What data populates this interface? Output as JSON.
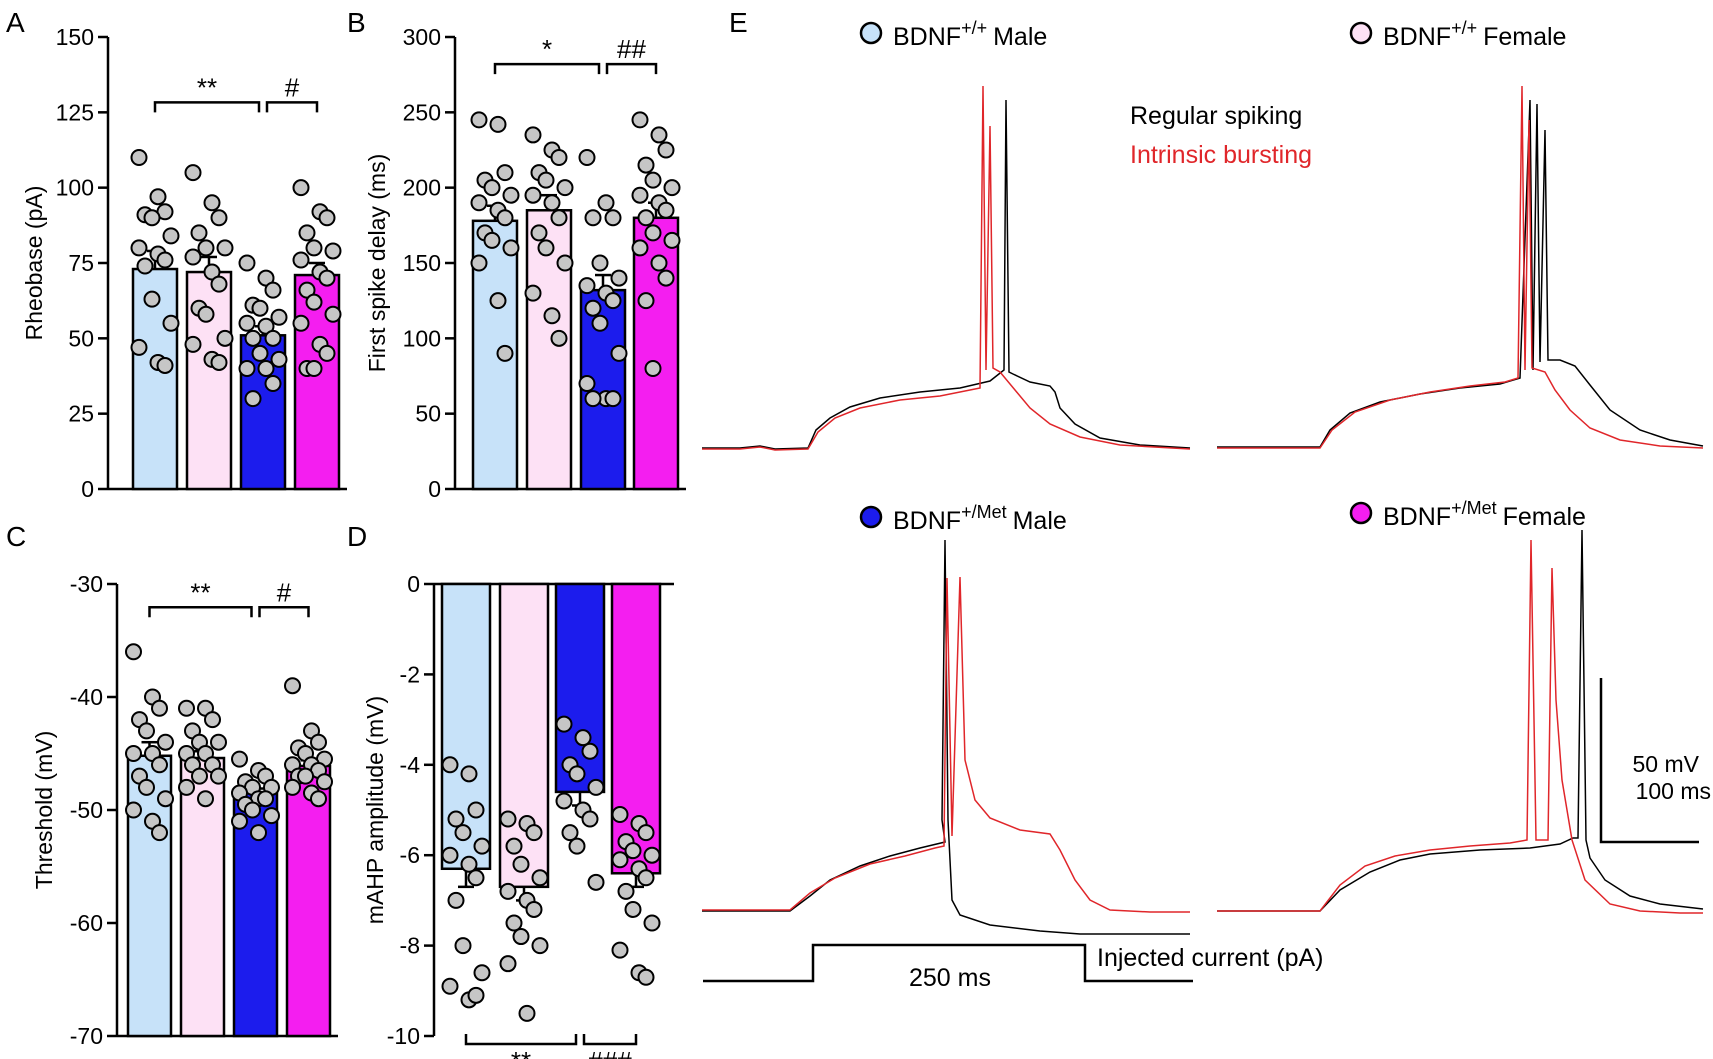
{
  "colors": {
    "wt_male": "#c7e2f9",
    "wt_female": "#fde1f5",
    "met_male": "#1c1ced",
    "met_female": "#f41ef0",
    "dot": "#c6c6c6",
    "regular": "#000000",
    "bursting": "#e0262a"
  },
  "chart_data": [
    {
      "panel": "A",
      "type": "bar",
      "ylabel": "Rheobase (pA)",
      "ylim": [
        0,
        150
      ],
      "yticks": [
        0,
        25,
        50,
        75,
        100,
        125,
        150
      ],
      "categories": [
        "BDNF+/+ Male",
        "BDNF+/+ Female",
        "BDNF+/Met Male",
        "BDNF+/Met Female"
      ],
      "values": [
        73,
        72,
        51,
        71
      ],
      "sem": [
        6,
        5,
        3,
        4
      ],
      "points": [
        [
          110,
          97,
          92,
          91,
          90,
          84,
          80,
          78,
          76,
          74,
          63,
          55,
          47,
          42,
          41
        ],
        [
          105,
          95,
          90,
          85,
          80,
          80,
          77,
          72,
          68,
          60,
          58,
          50,
          48,
          43,
          42
        ],
        [
          75,
          70,
          66,
          61,
          60,
          57,
          55,
          54,
          50,
          50,
          45,
          43,
          40,
          40,
          35,
          30
        ],
        [
          100,
          92,
          90,
          85,
          80,
          79,
          76,
          72,
          70,
          66,
          62,
          58,
          55,
          48,
          45,
          40,
          40
        ]
      ],
      "sig": [
        {
          "label": "**",
          "from": 0,
          "to": 2,
          "y": 125
        },
        {
          "label": "#",
          "from": 2,
          "to": 3,
          "y": 125
        }
      ]
    },
    {
      "panel": "B",
      "type": "bar",
      "ylabel": "First spike delay (ms)",
      "ylim": [
        0,
        300
      ],
      "yticks": [
        0,
        50,
        100,
        150,
        200,
        250,
        300
      ],
      "categories": [
        "BDNF+/+ Male",
        "BDNF+/+ Female",
        "BDNF+/Met Male",
        "BDNF+/Met Female"
      ],
      "values": [
        178,
        185,
        132,
        180
      ],
      "sem": [
        10,
        10,
        10,
        10
      ],
      "points": [
        [
          245,
          242,
          210,
          205,
          200,
          195,
          190,
          185,
          180,
          170,
          165,
          160,
          150,
          125,
          90
        ],
        [
          235,
          225,
          220,
          210,
          205,
          200,
          195,
          190,
          180,
          170,
          160,
          150,
          130,
          115,
          100
        ],
        [
          220,
          190,
          180,
          180,
          150,
          140,
          135,
          130,
          125,
          120,
          110,
          90,
          70,
          60,
          60,
          60
        ],
        [
          245,
          235,
          225,
          215,
          205,
          200,
          195,
          190,
          185,
          180,
          170,
          165,
          160,
          150,
          140,
          125,
          80
        ]
      ],
      "sig": [
        {
          "label": "*",
          "from": 0,
          "to": 2,
          "y": 290
        },
        {
          "label": "##",
          "from": 2,
          "to": 3,
          "y": 290
        }
      ]
    },
    {
      "panel": "C",
      "type": "bar",
      "ylabel": "Threshold (mV)",
      "ylim": [
        -70,
        -30
      ],
      "yticks": [
        -70,
        -60,
        -50,
        -40,
        -30
      ],
      "categories": [
        "BDNF+/+ Male",
        "BDNF+/+ Female",
        "BDNF+/Met Male",
        "BDNF+/Met Female"
      ],
      "values": [
        -45.2,
        -45.4,
        -48.5,
        -46.1
      ],
      "sem": [
        1.2,
        0.6,
        0.4,
        0.5
      ],
      "points": [
        [
          -36,
          -40,
          -41,
          -42,
          -43,
          -44,
          -45,
          -45,
          -46,
          -47,
          -48,
          -49,
          -50,
          -51,
          -52
        ],
        [
          -41,
          -41,
          -42,
          -43,
          -44,
          -44,
          -45,
          -45,
          -46,
          -46,
          -47,
          -47,
          -48,
          -49
        ],
        [
          -45.5,
          -46.5,
          -47,
          -47.5,
          -48,
          -48,
          -48.5,
          -49,
          -49,
          -49.5,
          -50,
          -50.5,
          -51,
          -52
        ],
        [
          -39,
          -43,
          -44,
          -44.5,
          -45,
          -45.5,
          -46,
          -46,
          -46.5,
          -47,
          -47,
          -47.5,
          -48,
          -48.5,
          -49
        ]
      ],
      "sig": [
        {
          "label": "**",
          "from": 0,
          "to": 2,
          "y": -31
        },
        {
          "label": "#",
          "from": 2,
          "to": 3,
          "y": -31
        }
      ]
    },
    {
      "panel": "D",
      "type": "bar",
      "ylabel": "mAHP amplitude (mV)",
      "ylim": [
        -10,
        0
      ],
      "yticks": [
        -10,
        -8,
        -6,
        -4,
        -2,
        0
      ],
      "categories": [
        "BDNF+/+ Male",
        "BDNF+/+ Female",
        "BDNF+/Met Male",
        "BDNF+/Met Female"
      ],
      "values": [
        -6.3,
        -6.7,
        -4.6,
        -6.4
      ],
      "sem": [
        0.4,
        0.3,
        0.3,
        0.3
      ],
      "points": [
        [
          -4,
          -4.2,
          -5,
          -5.2,
          -5.5,
          -5.8,
          -6,
          -6.2,
          -6.5,
          -7,
          -8,
          -8.6,
          -8.9,
          -9.2,
          -9.1
        ],
        [
          -5.2,
          -5.3,
          -5.5,
          -5.8,
          -6.2,
          -6.5,
          -6.8,
          -7,
          -7.2,
          -7.5,
          -7.8,
          -8,
          -8.4,
          -9.5
        ],
        [
          -3.1,
          -3.4,
          -3.7,
          -4,
          -4.2,
          -4.5,
          -4.8,
          -5,
          -5.2,
          -5.5,
          -5.8,
          -6.6
        ],
        [
          -5.1,
          -5.3,
          -5.5,
          -5.7,
          -5.9,
          -6,
          -6.1,
          -6.3,
          -6.5,
          -6.8,
          -7.2,
          -7.5,
          -8.1,
          -8.6,
          -8.7
        ]
      ],
      "sig": [
        {
          "label": "**",
          "from": 0,
          "to": 2,
          "y": -10.5,
          "below": true
        },
        {
          "label": "###",
          "from": 2,
          "to": 3,
          "y": -10.5,
          "below": true
        }
      ]
    }
  ],
  "panels": {
    "A": "A",
    "B": "B",
    "C": "C",
    "D": "D",
    "E": "E"
  },
  "traces": {
    "wt_male": {
      "prefix": "BDNF",
      "sup": "+/+",
      "suffix": "Male"
    },
    "wt_female": {
      "prefix": "BDNF",
      "sup": "+/+",
      "suffix": "Female"
    },
    "met_male": {
      "prefix": "BDNF",
      "sup": "+/Met",
      "suffix": "Male"
    },
    "met_female": {
      "prefix": "BDNF",
      "sup": "+/Met",
      "suffix": "Female"
    },
    "regular_label": "Regular spiking",
    "bursting_label": "Intrinsic bursting",
    "scale_mv": "50 mV",
    "scale_ms": "100 ms",
    "injected_label": "Injected current (pA)",
    "duration_label": "250 ms"
  }
}
